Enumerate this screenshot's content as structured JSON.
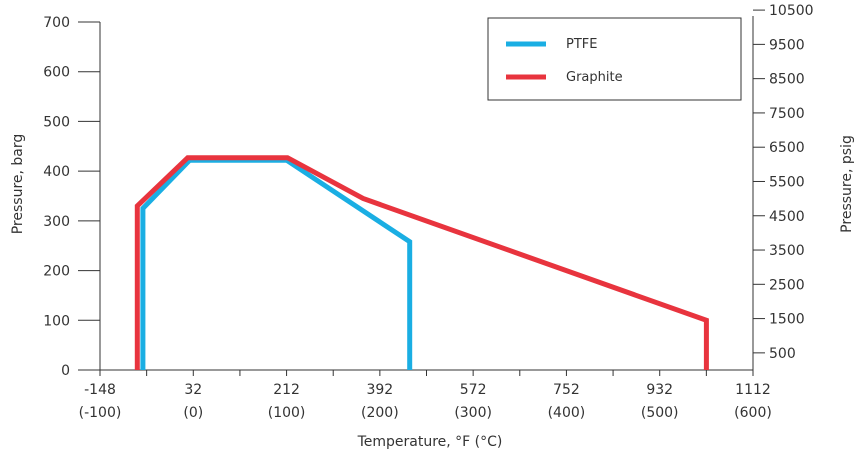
{
  "chart_data": {
    "type": "line",
    "title": "",
    "xlabel": "Temperature, °F (°C)",
    "ylabel_left": "Pressure, barg",
    "ylabel_right": "Pressure, psig",
    "x_unit": "°C",
    "xlim": [
      -100,
      600
    ],
    "ylim_left": [
      0,
      700
    ],
    "x_ticks": [
      {
        "c": -100,
        "f_label": "-148",
        "c_label": "(-100)"
      },
      {
        "c": 0,
        "f_label": "32",
        "c_label": "(0)"
      },
      {
        "c": 100,
        "f_label": "212",
        "c_label": "(100)"
      },
      {
        "c": 200,
        "f_label": "392",
        "c_label": "(200)"
      },
      {
        "c": 300,
        "f_label": "572",
        "c_label": "(300)"
      },
      {
        "c": 400,
        "f_label": "752",
        "c_label": "(400)"
      },
      {
        "c": 500,
        "f_label": "932",
        "c_label": "(500)"
      },
      {
        "c": 600,
        "f_label": "1112",
        "c_label": "(600)"
      }
    ],
    "y_left_ticks": [
      0,
      100,
      200,
      300,
      400,
      500,
      600,
      700
    ],
    "y_right_ticks": [
      500,
      1500,
      2500,
      3500,
      4500,
      5500,
      6500,
      7500,
      8500,
      9500,
      10500
    ],
    "psig_per_barg": 14.5038,
    "grid": false,
    "legend_position": "top-right",
    "series": [
      {
        "name": "PTFE",
        "color": "#1aaee3",
        "points": [
          [
            -54,
            0
          ],
          [
            -54,
            325
          ],
          [
            -4,
            422
          ],
          [
            100,
            422
          ],
          [
            232,
            258
          ],
          [
            232,
            0
          ]
        ]
      },
      {
        "name": "Graphite",
        "color": "#e8343e",
        "points": [
          [
            -60,
            0
          ],
          [
            -60,
            330
          ],
          [
            -6,
            427
          ],
          [
            101,
            427
          ],
          [
            182,
            345
          ],
          [
            550,
            100
          ],
          [
            550,
            0
          ]
        ]
      }
    ]
  }
}
